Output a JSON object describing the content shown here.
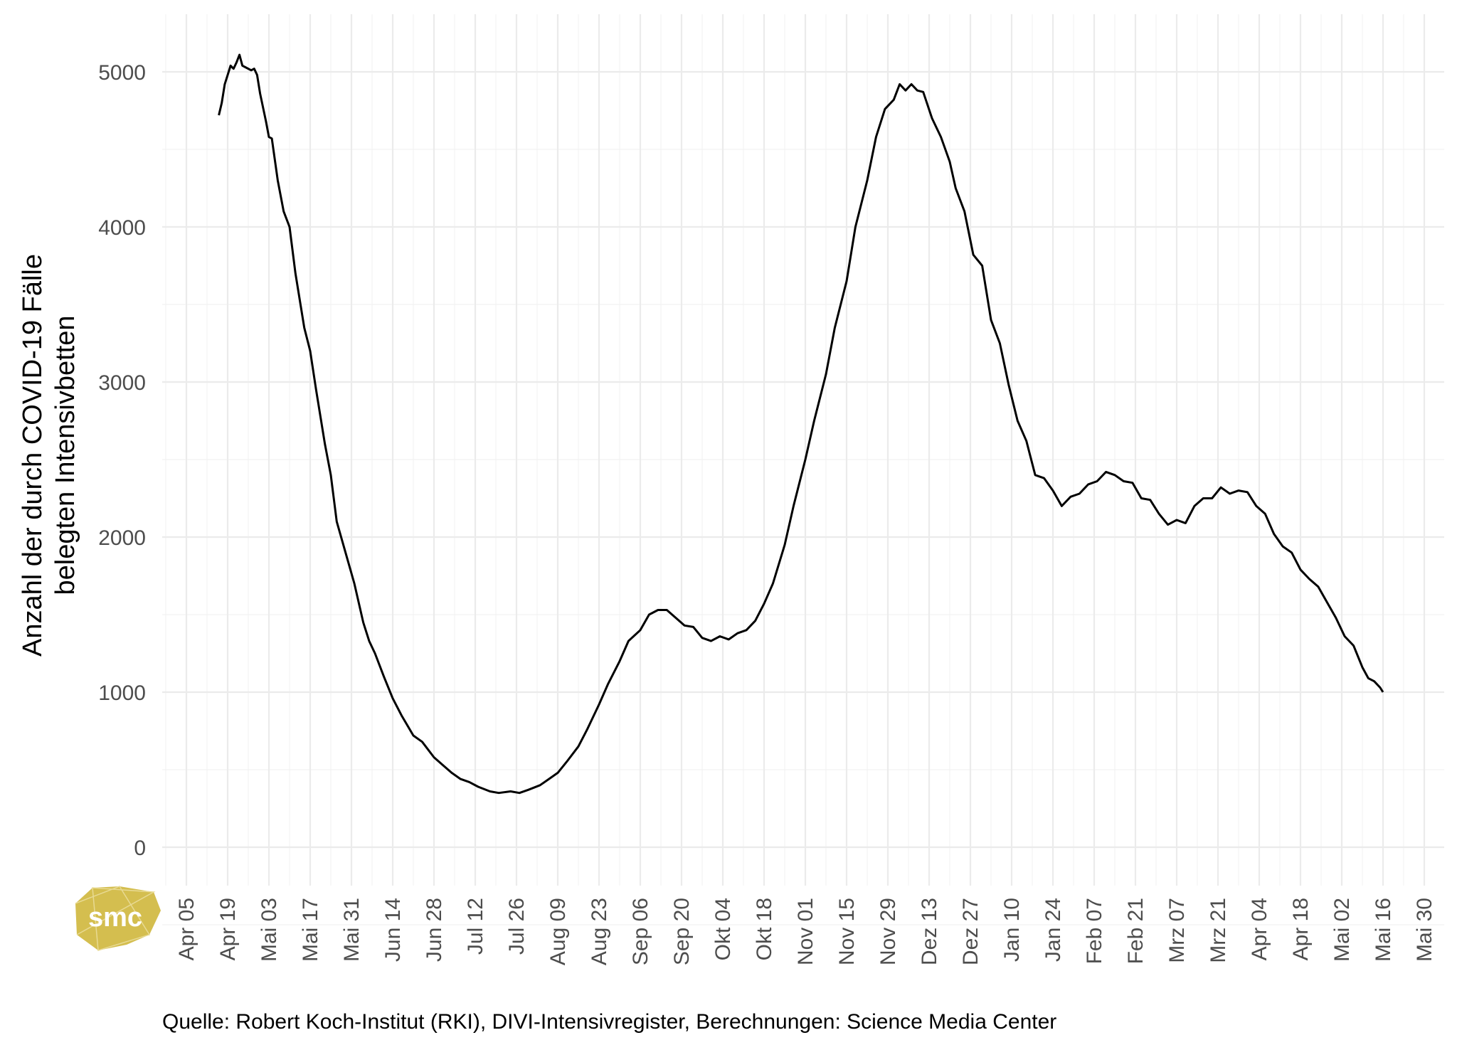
{
  "chart_data": {
    "type": "line",
    "title": "",
    "ylabel_line1": "Anzahl der durch COVID-19 Fälle",
    "ylabel_line2": "belegten Intensivbetten",
    "xlabel": "",
    "ylim": [
      -250,
      5200
    ],
    "y_ticks": [
      0,
      1000,
      2000,
      3000,
      4000,
      5000
    ],
    "x_range": [
      "2020-03-25",
      "2021-05-31"
    ],
    "x_ticks": [
      {
        "date": "2020-04-05",
        "label": "Apr 05"
      },
      {
        "date": "2020-04-19",
        "label": "Apr 19"
      },
      {
        "date": "2020-05-03",
        "label": "Mai 03"
      },
      {
        "date": "2020-05-17",
        "label": "Mai 17"
      },
      {
        "date": "2020-05-31",
        "label": "Mai 31"
      },
      {
        "date": "2020-06-14",
        "label": "Jun 14"
      },
      {
        "date": "2020-06-28",
        "label": "Jun 28"
      },
      {
        "date": "2020-07-12",
        "label": "Jul 12"
      },
      {
        "date": "2020-07-26",
        "label": "Jul 26"
      },
      {
        "date": "2020-08-09",
        "label": "Aug 09"
      },
      {
        "date": "2020-08-23",
        "label": "Aug 23"
      },
      {
        "date": "2020-09-06",
        "label": "Sep 06"
      },
      {
        "date": "2020-09-20",
        "label": "Sep 20"
      },
      {
        "date": "2020-10-04",
        "label": "Okt 04"
      },
      {
        "date": "2020-10-18",
        "label": "Okt 18"
      },
      {
        "date": "2020-11-01",
        "label": "Nov 01"
      },
      {
        "date": "2020-11-15",
        "label": "Nov 15"
      },
      {
        "date": "2020-11-29",
        "label": "Nov 29"
      },
      {
        "date": "2020-12-13",
        "label": "Dez 13"
      },
      {
        "date": "2020-12-27",
        "label": "Dez 27"
      },
      {
        "date": "2021-01-10",
        "label": "Jan 10"
      },
      {
        "date": "2021-01-24",
        "label": "Jan 24"
      },
      {
        "date": "2021-02-07",
        "label": "Feb 07"
      },
      {
        "date": "2021-02-21",
        "label": "Feb 21"
      },
      {
        "date": "2021-03-07",
        "label": "Mrz 07"
      },
      {
        "date": "2021-03-21",
        "label": "Mrz 21"
      },
      {
        "date": "2021-04-04",
        "label": "Apr 04"
      },
      {
        "date": "2021-04-18",
        "label": "Apr 18"
      },
      {
        "date": "2021-05-02",
        "label": "Mai 02"
      },
      {
        "date": "2021-05-16",
        "label": "Mai 16"
      },
      {
        "date": "2021-05-30",
        "label": "Mai 30"
      }
    ],
    "grid": true,
    "line_color": "#000000",
    "series": [
      {
        "points": [
          [
            "2020-04-16",
            4720
          ],
          [
            "2020-04-17",
            4800
          ],
          [
            "2020-04-18",
            4920
          ],
          [
            "2020-04-19",
            4980
          ],
          [
            "2020-04-20",
            5040
          ],
          [
            "2020-04-21",
            5020
          ],
          [
            "2020-04-22",
            5060
          ],
          [
            "2020-04-23",
            5110
          ],
          [
            "2020-04-24",
            5040
          ],
          [
            "2020-04-25",
            5030
          ],
          [
            "2020-04-27",
            5010
          ],
          [
            "2020-04-28",
            5020
          ],
          [
            "2020-04-29",
            4980
          ],
          [
            "2020-04-30",
            4860
          ],
          [
            "2020-05-02",
            4680
          ],
          [
            "2020-05-03",
            4580
          ],
          [
            "2020-05-04",
            4570
          ],
          [
            "2020-05-06",
            4300
          ],
          [
            "2020-05-08",
            4100
          ],
          [
            "2020-05-10",
            4000
          ],
          [
            "2020-05-12",
            3700
          ],
          [
            "2020-05-15",
            3350
          ],
          [
            "2020-05-17",
            3200
          ],
          [
            "2020-05-19",
            2950
          ],
          [
            "2020-05-22",
            2600
          ],
          [
            "2020-05-24",
            2400
          ],
          [
            "2020-05-26",
            2100
          ],
          [
            "2020-05-29",
            1900
          ],
          [
            "2020-06-01",
            1700
          ],
          [
            "2020-06-04",
            1450
          ],
          [
            "2020-06-06",
            1330
          ],
          [
            "2020-06-08",
            1250
          ],
          [
            "2020-06-11",
            1100
          ],
          [
            "2020-06-14",
            960
          ],
          [
            "2020-06-17",
            850
          ],
          [
            "2020-06-21",
            720
          ],
          [
            "2020-06-24",
            680
          ],
          [
            "2020-06-28",
            580
          ],
          [
            "2020-07-01",
            530
          ],
          [
            "2020-07-04",
            480
          ],
          [
            "2020-07-07",
            440
          ],
          [
            "2020-07-10",
            420
          ],
          [
            "2020-07-13",
            390
          ],
          [
            "2020-07-17",
            360
          ],
          [
            "2020-07-20",
            350
          ],
          [
            "2020-07-24",
            360
          ],
          [
            "2020-07-27",
            350
          ],
          [
            "2020-07-30",
            370
          ],
          [
            "2020-08-03",
            400
          ],
          [
            "2020-08-06",
            440
          ],
          [
            "2020-08-09",
            480
          ],
          [
            "2020-08-12",
            550
          ],
          [
            "2020-08-16",
            650
          ],
          [
            "2020-08-19",
            760
          ],
          [
            "2020-08-23",
            920
          ],
          [
            "2020-08-26",
            1050
          ],
          [
            "2020-08-30",
            1200
          ],
          [
            "2020-09-02",
            1330
          ],
          [
            "2020-09-06",
            1400
          ],
          [
            "2020-09-09",
            1500
          ],
          [
            "2020-09-12",
            1530
          ],
          [
            "2020-09-15",
            1530
          ],
          [
            "2020-09-18",
            1480
          ],
          [
            "2020-09-21",
            1430
          ],
          [
            "2020-09-24",
            1420
          ],
          [
            "2020-09-27",
            1350
          ],
          [
            "2020-09-30",
            1330
          ],
          [
            "2020-10-03",
            1360
          ],
          [
            "2020-10-06",
            1340
          ],
          [
            "2020-10-09",
            1380
          ],
          [
            "2020-10-12",
            1400
          ],
          [
            "2020-10-15",
            1460
          ],
          [
            "2020-10-18",
            1570
          ],
          [
            "2020-10-21",
            1700
          ],
          [
            "2020-10-25",
            1950
          ],
          [
            "2020-10-28",
            2200
          ],
          [
            "2020-11-01",
            2500
          ],
          [
            "2020-11-04",
            2750
          ],
          [
            "2020-11-08",
            3050
          ],
          [
            "2020-11-11",
            3350
          ],
          [
            "2020-11-15",
            3650
          ],
          [
            "2020-11-18",
            4000
          ],
          [
            "2020-11-22",
            4300
          ],
          [
            "2020-11-25",
            4580
          ],
          [
            "2020-11-28",
            4760
          ],
          [
            "2020-12-01",
            4820
          ],
          [
            "2020-12-03",
            4920
          ],
          [
            "2020-12-05",
            4880
          ],
          [
            "2020-12-07",
            4920
          ],
          [
            "2020-12-09",
            4880
          ],
          [
            "2020-12-11",
            4870
          ],
          [
            "2020-12-14",
            4700
          ],
          [
            "2020-12-17",
            4580
          ],
          [
            "2020-12-20",
            4420
          ],
          [
            "2020-12-22",
            4250
          ],
          [
            "2020-12-25",
            4100
          ],
          [
            "2020-12-28",
            3820
          ],
          [
            "2020-12-31",
            3750
          ],
          [
            "2021-01-03",
            3400
          ],
          [
            "2021-01-06",
            3250
          ],
          [
            "2021-01-09",
            2980
          ],
          [
            "2021-01-12",
            2750
          ],
          [
            "2021-01-15",
            2620
          ],
          [
            "2021-01-18",
            2400
          ],
          [
            "2021-01-21",
            2380
          ],
          [
            "2021-01-24",
            2300
          ],
          [
            "2021-01-27",
            2200
          ],
          [
            "2021-01-30",
            2260
          ],
          [
            "2021-02-02",
            2280
          ],
          [
            "2021-02-05",
            2340
          ],
          [
            "2021-02-08",
            2360
          ],
          [
            "2021-02-11",
            2420
          ],
          [
            "2021-02-14",
            2400
          ],
          [
            "2021-02-17",
            2360
          ],
          [
            "2021-02-20",
            2350
          ],
          [
            "2021-02-23",
            2250
          ],
          [
            "2021-02-26",
            2240
          ],
          [
            "2021-03-01",
            2150
          ],
          [
            "2021-03-04",
            2080
          ],
          [
            "2021-03-07",
            2110
          ],
          [
            "2021-03-10",
            2090
          ],
          [
            "2021-03-13",
            2200
          ],
          [
            "2021-03-16",
            2250
          ],
          [
            "2021-03-19",
            2250
          ],
          [
            "2021-03-22",
            2320
          ],
          [
            "2021-03-25",
            2280
          ],
          [
            "2021-03-28",
            2300
          ],
          [
            "2021-03-31",
            2290
          ],
          [
            "2021-04-03",
            2200
          ],
          [
            "2021-04-06",
            2150
          ],
          [
            "2021-04-09",
            2020
          ],
          [
            "2021-04-12",
            1940
          ],
          [
            "2021-04-15",
            1900
          ],
          [
            "2021-04-18",
            1790
          ],
          [
            "2021-04-21",
            1730
          ],
          [
            "2021-04-24",
            1680
          ],
          [
            "2021-04-27",
            1580
          ],
          [
            "2021-04-30",
            1480
          ],
          [
            "2021-05-03",
            1360
          ],
          [
            "2021-05-06",
            1300
          ],
          [
            "2021-05-09",
            1160
          ],
          [
            "2021-05-11",
            1090
          ],
          [
            "2021-05-13",
            1070
          ],
          [
            "2021-05-15",
            1030
          ],
          [
            "2021-05-16",
            1000
          ]
        ]
      }
    ]
  },
  "caption": "Quelle: Robert Koch-Institut (RKI), DIVI-Intensivregister, Berechnungen: Science Media Center",
  "logo": {
    "text": "smc",
    "color": "#d4be4f"
  }
}
